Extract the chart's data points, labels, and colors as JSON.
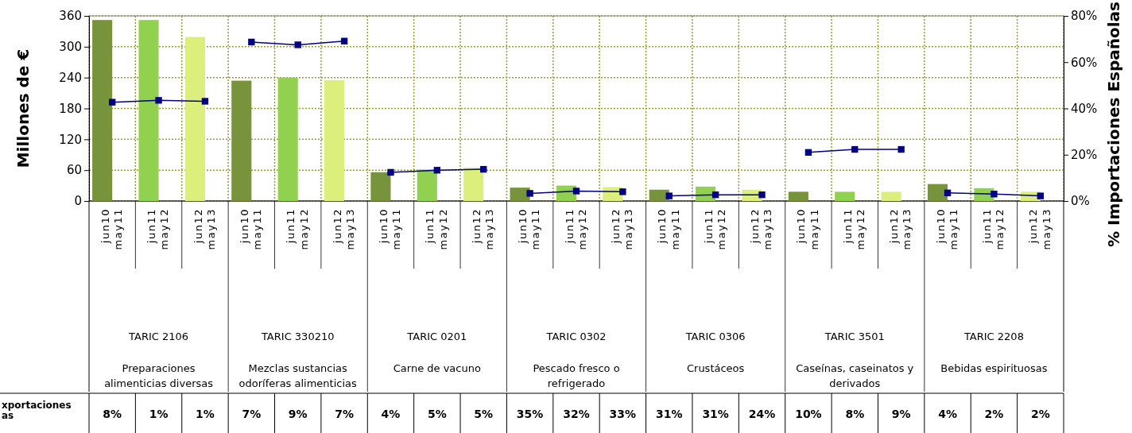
{
  "chart_data": {
    "type": "bar",
    "ylabel": "Millones de €",
    "y2label": "% Importaciones Españolas",
    "categories": [
      "jun10 may11",
      "jun11 may12",
      "jun12 may13",
      "jun10 may11",
      "jun11 may12",
      "jun12 may13",
      "jun10 may11",
      "jun11 may12",
      "jun12 may13",
      "jun10 may11",
      "jun11 may12",
      "jun12 may13",
      "jun10 may11",
      "jun11 may12",
      "jun12 may13",
      "jun10 may11",
      "jun11 may12",
      "jun12 may13",
      "jun10 may11",
      "jun11 may12",
      "jun12 may13"
    ],
    "series": [
      {
        "colors": [
          "#77933c",
          "#92d050",
          "#dcef7c",
          "#77933c",
          "#92d050",
          "#dcef7c",
          "#77933c",
          "#92d050",
          "#dcef7c",
          "#77933c",
          "#92d050",
          "#dcef7c",
          "#77933c",
          "#92d050",
          "#dcef7c",
          "#77933c",
          "#92d050",
          "#dcef7c",
          "#77933c",
          "#92d050",
          "#dcef7c"
        ],
        "values": [
          352,
          352,
          319,
          234,
          240,
          235,
          56,
          61,
          65,
          26,
          30,
          27,
          22,
          28,
          22,
          18,
          18,
          18,
          33,
          25,
          18
        ]
      },
      {
        "type": "line",
        "axis": "y2",
        "color": "#000080",
        "values": [
          42.7,
          43.5,
          43.1,
          68.7,
          67.5,
          69.1,
          12.4,
          13.3,
          13.7,
          3.3,
          4.3,
          4.0,
          2.2,
          2.7,
          2.7,
          21.0,
          22.3,
          22.3,
          3.5,
          3.0,
          2.2
        ]
      }
    ],
    "ylim": [
      0,
      360
    ],
    "yticks": [
      0,
      60,
      120,
      180,
      240,
      300,
      360
    ],
    "y2lim": [
      0,
      80
    ],
    "y2ticks": [
      {
        "value": 0,
        "label": "0%"
      },
      {
        "value": 20,
        "label": "20%"
      },
      {
        "value": 40,
        "label": "40%"
      },
      {
        "value": 60,
        "label": "60%"
      },
      {
        "value": 80,
        "label": "80%"
      }
    ],
    "grid": true,
    "marker": "square",
    "line_style": "solid",
    "annotations": [
      "TARIC 2106",
      "TARIC 330210",
      "TARIC 0201",
      "TARIC 0302",
      "TARIC 0306",
      "TARIC 3501",
      "TARIC 2208",
      "Preparaciones alimenticias diversas",
      "Mezclas sustancias odoríferas alimenticias",
      "Carne de vacuno",
      "Pescado fresco o refrigerado",
      "Crustáceos",
      "Caseínas, caseinatos y derivados",
      "Bebidas espirituosas",
      "xportaciones as",
      "8%",
      "1%",
      "1%",
      "7%",
      "9%",
      "7%",
      "4%",
      "5%",
      "5%",
      "35%",
      "32%",
      "33%",
      "31%",
      "31%",
      "24%",
      "10%",
      "8%",
      "9%",
      "4%",
      "2%",
      "2%"
    ]
  }
}
